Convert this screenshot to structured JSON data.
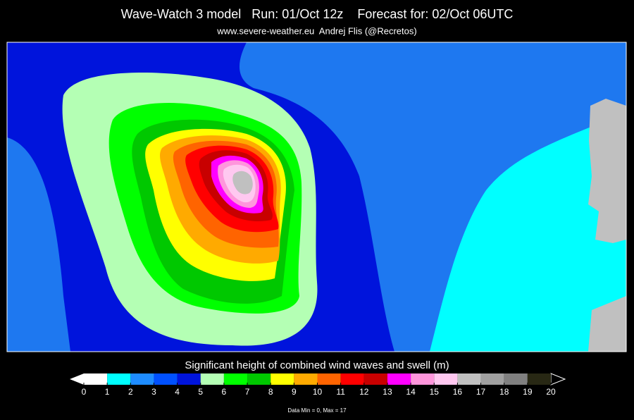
{
  "header": {
    "title": "Wave-Watch 3 model   Run: 01/Oct 12z    Forecast for: 02/Oct 06UTC",
    "subtitle": "www.severe-weather.eu  Andrej Flis (@Recretos)"
  },
  "legend": {
    "title": "Significant height of combined wind waves and swell (m)",
    "ticks": [
      0,
      1,
      2,
      3,
      4,
      5,
      6,
      7,
      8,
      9,
      10,
      11,
      12,
      13,
      14,
      15,
      16,
      17,
      18,
      19,
      20
    ],
    "colors": [
      "#ffffff",
      "#00ffff",
      "#1e8cff",
      "#0050ff",
      "#0014dc",
      "#b4ffb4",
      "#00ff00",
      "#00c800",
      "#ffff00",
      "#ffaa00",
      "#ff6400",
      "#ff0000",
      "#c80000",
      "#ff00ff",
      "#ff96dc",
      "#ffc8f0",
      "#c0c0c0",
      "#a0a0a0",
      "#808080",
      "#282814"
    ],
    "note": "Data Min = 0, Max = 17"
  }
}
